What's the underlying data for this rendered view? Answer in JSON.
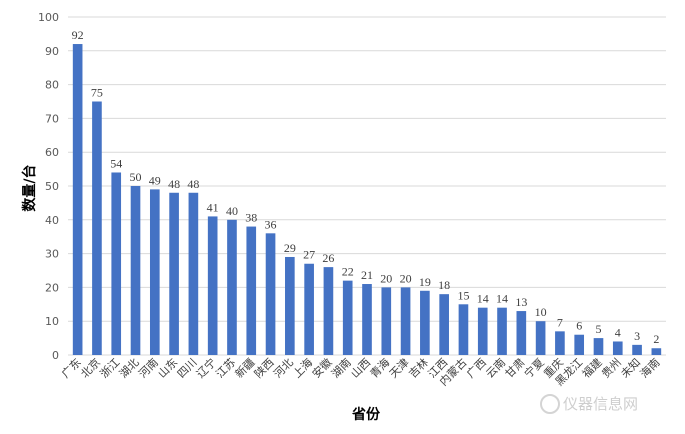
{
  "chart_data": {
    "type": "bar",
    "categories": [
      "广东",
      "北京",
      "浙江",
      "湖北",
      "河南",
      "山东",
      "四川",
      "辽宁",
      "江苏",
      "新疆",
      "陕西",
      "河北",
      "上海",
      "安徽",
      "湖南",
      "山西",
      "青海",
      "天津",
      "吉林",
      "江西",
      "内蒙古",
      "广西",
      "云南",
      "甘肃",
      "宁夏",
      "重庆",
      "黑龙江",
      "福建",
      "贵州",
      "未知",
      "海南"
    ],
    "values": [
      92,
      75,
      54,
      50,
      49,
      48,
      48,
      41,
      40,
      38,
      36,
      29,
      27,
      26,
      22,
      21,
      20,
      20,
      19,
      18,
      15,
      14,
      14,
      13,
      10,
      7,
      6,
      5,
      4,
      3,
      2
    ],
    "xlabel": "省份",
    "ylabel": "数量/台",
    "ylim": [
      0,
      100
    ],
    "yticks": [
      0,
      10,
      20,
      30,
      40,
      50,
      60,
      70,
      80,
      90,
      100
    ],
    "grid": true,
    "bar_color": "#4472C4",
    "grid_color": "#D9D9D9"
  },
  "watermark": "仪器信息网"
}
